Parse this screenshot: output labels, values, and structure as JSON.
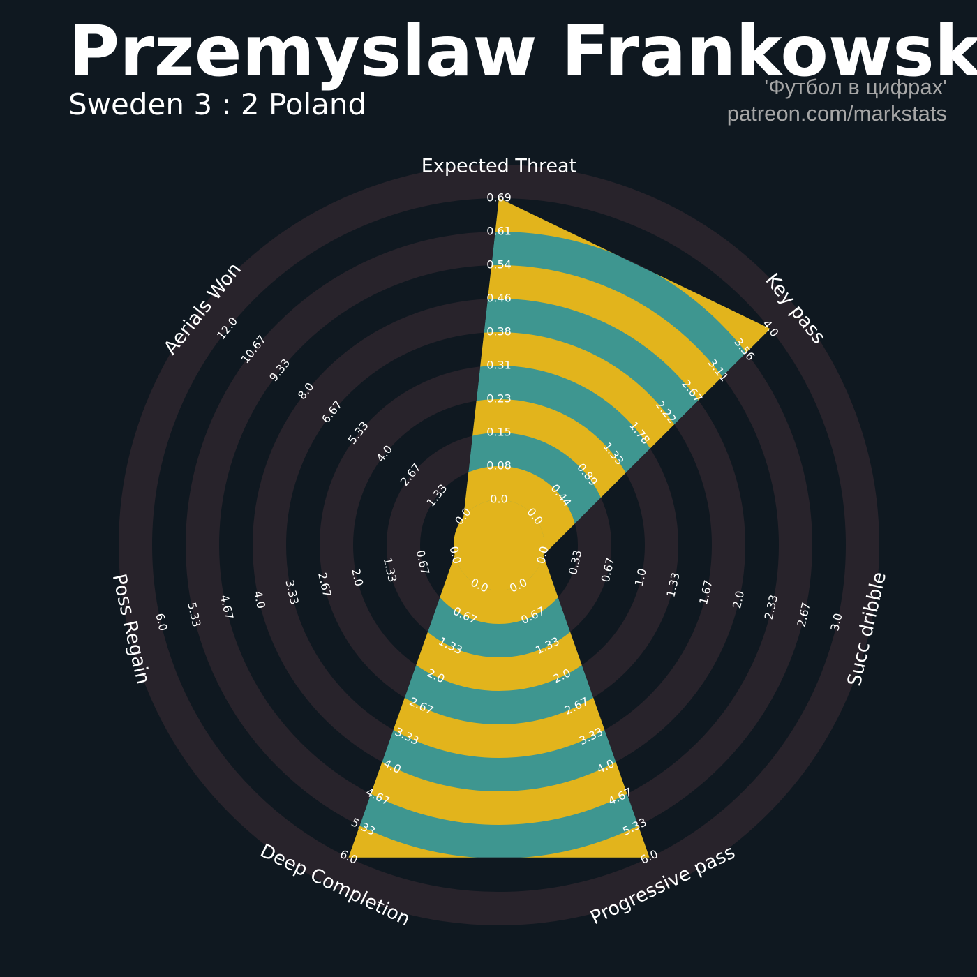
{
  "header": {
    "title": "Przemyslaw Frankowski",
    "subtitle": "Sweden 3 : 2 Poland",
    "credit_line1": "'Футбол в цифрах'",
    "credit_line2": "patreon.com/markstats"
  },
  "colors": {
    "background": "#0f1820",
    "grid_ring": "#28232b",
    "fill_primary": "#3e9690",
    "fill_secondary": "#e2b41c",
    "text": "#ffffff",
    "credit": "#a6a6a6"
  },
  "chart_data": {
    "type": "radar",
    "title": "Przemyslaw Frankowski",
    "subtitle": "Sweden 3 : 2 Poland",
    "parameters": [
      {
        "name": "Expected Threat",
        "min": 0.0,
        "max": 0.69,
        "value": 0.69,
        "tick_labels": [
          "0.0",
          "0.08",
          "0.15",
          "0.23",
          "0.31",
          "0.38",
          "0.46",
          "0.54",
          "0.61",
          "0.69"
        ]
      },
      {
        "name": "Key pass",
        "min": 0.0,
        "max": 4.0,
        "value": 4.0,
        "tick_labels": [
          "0.0",
          "0.44",
          "0.89",
          "1.33",
          "1.78",
          "2.22",
          "2.67",
          "3.11",
          "3.56",
          "4.0"
        ]
      },
      {
        "name": "Succ dribble",
        "min": 0.0,
        "max": 3.0,
        "value": 0.0,
        "tick_labels": [
          "0.0",
          "0.33",
          "0.67",
          "1.0",
          "1.33",
          "1.67",
          "2.0",
          "2.33",
          "2.67",
          "3.0"
        ]
      },
      {
        "name": "Progressive pass",
        "min": 0.0,
        "max": 6.0,
        "value": 6.0,
        "tick_labels": [
          "0.0",
          "0.67",
          "1.33",
          "2.0",
          "2.67",
          "3.33",
          "4.0",
          "4.67",
          "5.33",
          "6.0"
        ]
      },
      {
        "name": "Deep Completion",
        "min": 0.0,
        "max": 6.0,
        "value": 6.0,
        "tick_labels": [
          "0.0",
          "0.67",
          "1.33",
          "2.0",
          "2.67",
          "3.33",
          "4.0",
          "4.67",
          "5.33",
          "6.0"
        ]
      },
      {
        "name": "Poss Regain",
        "min": 0.0,
        "max": 6.0,
        "value": 0.0,
        "tick_labels": [
          "0.0",
          "0.67",
          "1.33",
          "2.0",
          "2.67",
          "3.33",
          "4.0",
          "4.67",
          "5.33",
          "6.0"
        ]
      },
      {
        "name": "Aerials Won",
        "min": 0.0,
        "max": 12.0,
        "value": 0.0,
        "tick_labels": [
          "0.0",
          "1.33",
          "2.67",
          "4.0",
          "5.33",
          "6.67",
          "8.0",
          "9.33",
          "10.67",
          "12.0"
        ]
      }
    ]
  }
}
